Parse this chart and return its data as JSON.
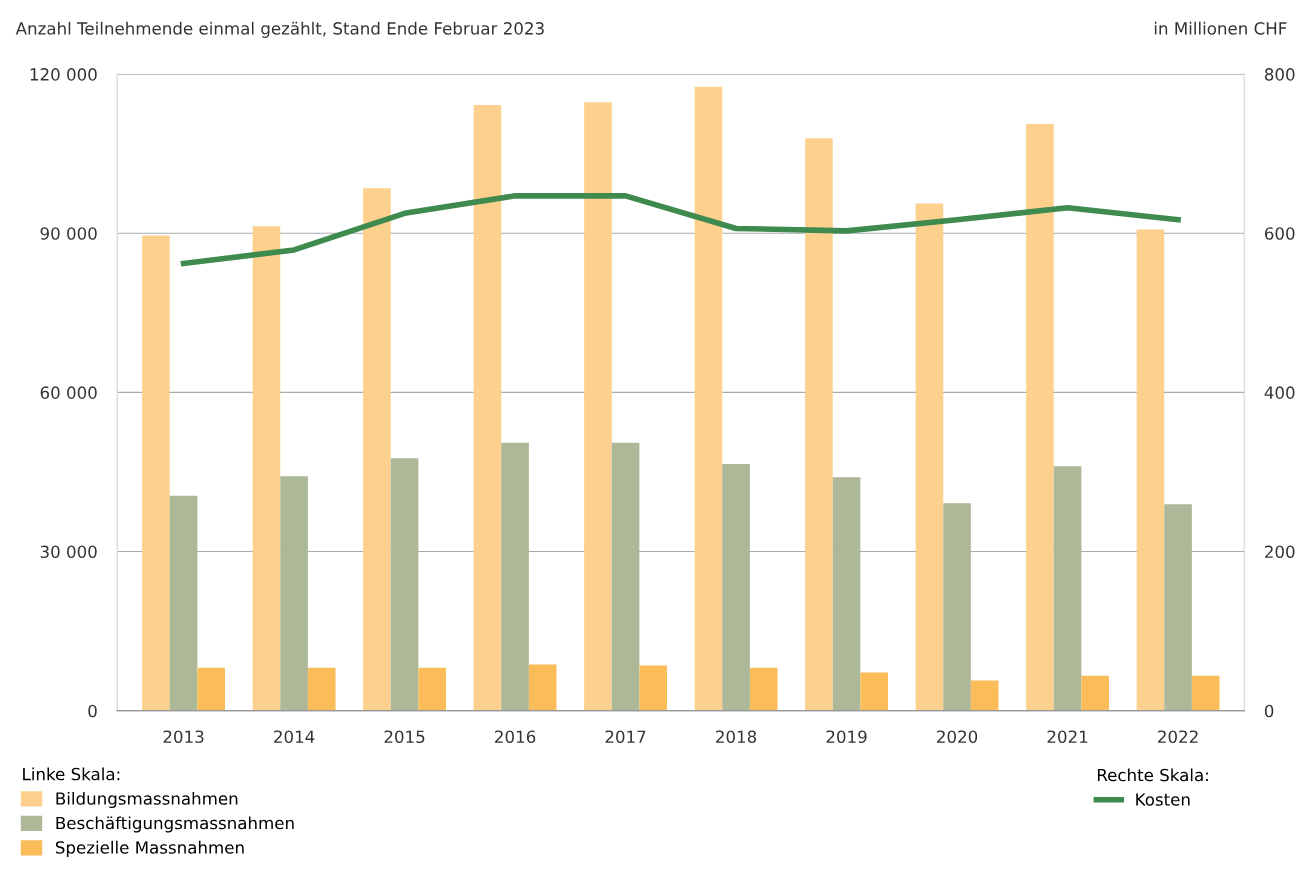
{
  "chart_data": {
    "type": "bar",
    "ylabel": "Anzahl Teilnehmende einmal gezählt, Stand Ende Februar 2023",
    "y2label": "in Millionen CHF",
    "categories": [
      "2013",
      "2014",
      "2015",
      "2016",
      "2017",
      "2018",
      "2019",
      "2020",
      "2021",
      "2022"
    ],
    "series": [
      {
        "name": "Bildungsmassnahmen",
        "color": "#fdd08e",
        "values": [
          89600,
          91300,
          98500,
          114200,
          114700,
          117600,
          107900,
          95600,
          110600,
          90700
        ]
      },
      {
        "name": "Beschäftigungsmassnahmen",
        "color": "#acb897",
        "values": [
          40500,
          44200,
          47600,
          50500,
          50500,
          46500,
          44000,
          39100,
          46100,
          38900
        ]
      },
      {
        "name": "Spezielle Massnahmen",
        "color": "#fbbd59",
        "values": [
          8100,
          8100,
          8100,
          8700,
          8500,
          8100,
          7200,
          5700,
          6600,
          6600
        ]
      },
      {
        "name": "Kosten",
        "color": "#3e8a4f",
        "type": "line",
        "axis": "y2",
        "values": [
          562,
          579,
          625,
          647,
          647,
          606,
          603,
          617,
          632,
          617
        ]
      }
    ],
    "ylim": [
      0,
      120000
    ],
    "yticks": [
      {
        "value": 0,
        "label": "0"
      },
      {
        "value": 30000,
        "label": "30 000"
      },
      {
        "value": 60000,
        "label": "60 000"
      },
      {
        "value": 90000,
        "label": "90 000"
      },
      {
        "value": 120000,
        "label": "120 000"
      }
    ],
    "y2lim": [
      0,
      800
    ],
    "y2ticks": [
      0,
      200,
      400,
      600,
      800
    ],
    "grid": "y",
    "legend": "bottom",
    "annotations": [
      "Linke Skala:",
      "Rechte Skala:"
    ]
  }
}
